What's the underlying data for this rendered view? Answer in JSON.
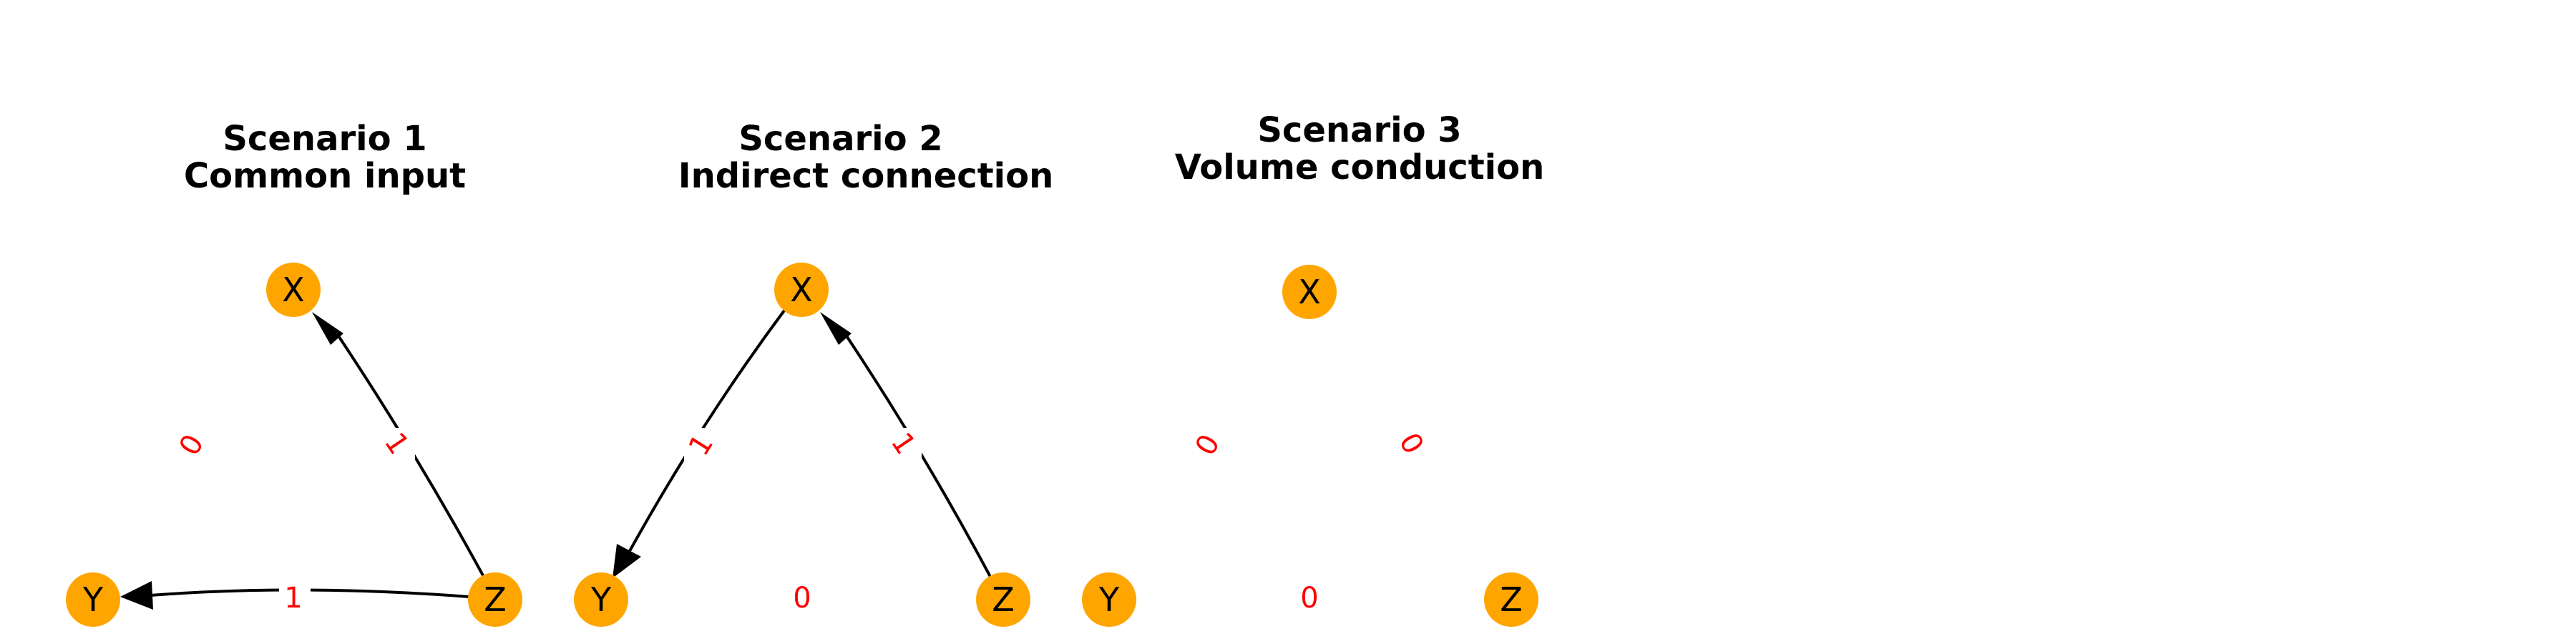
{
  "colors": {
    "node": "#FFA500",
    "edge": "#000000",
    "weight_label": "#FF0000",
    "background": "#FFFFFF"
  },
  "scenarios": [
    {
      "title_line1": "Scenario 1",
      "title_line2": "Common input",
      "nodes": {
        "X": "X",
        "Y": "Y",
        "Z": "Z"
      },
      "edges": [
        {
          "from": "Z",
          "to": "X",
          "weight": "1",
          "drawn": true
        },
        {
          "from": "Z",
          "to": "Y",
          "weight": "1",
          "drawn": true
        },
        {
          "from": "X",
          "to": "Y",
          "weight": "0",
          "drawn": false
        }
      ]
    },
    {
      "title_line1": "Scenario 2",
      "title_line2": "Indirect connection",
      "nodes": {
        "X": "X",
        "Y": "Y",
        "Z": "Z"
      },
      "edges": [
        {
          "from": "Z",
          "to": "X",
          "weight": "1",
          "drawn": true
        },
        {
          "from": "X",
          "to": "Y",
          "weight": "1",
          "drawn": true
        },
        {
          "from": "Z",
          "to": "Y",
          "weight": "0",
          "drawn": false
        }
      ]
    },
    {
      "title_line1": "Scenario 3",
      "title_line2": "Volume conduction",
      "nodes": {
        "X": "X",
        "Y": "Y",
        "Z": "Z"
      },
      "edges": [
        {
          "from": "X",
          "to": "Y",
          "weight": "0",
          "drawn": false
        },
        {
          "from": "Z",
          "to": "X",
          "weight": "0",
          "drawn": false
        },
        {
          "from": "Z",
          "to": "Y",
          "weight": "0",
          "drawn": false
        }
      ]
    }
  ]
}
